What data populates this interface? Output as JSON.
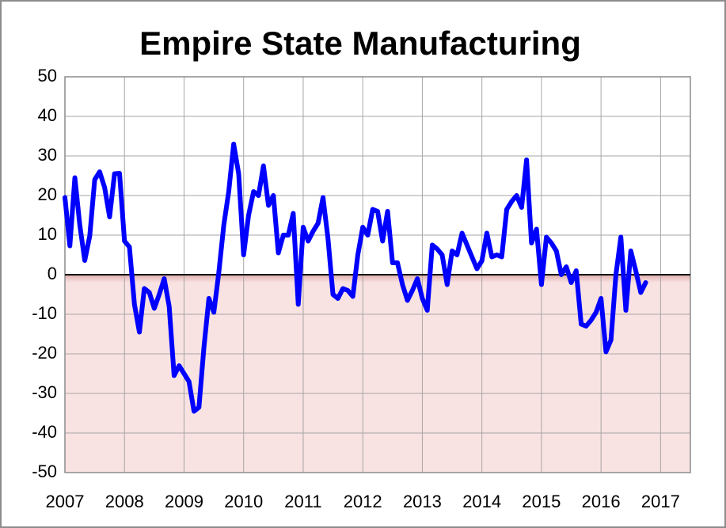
{
  "chart_data": {
    "type": "line",
    "title": "Empire State Manufacturing",
    "color": "#0000ff",
    "negative_fill": "#f9e2e2",
    "grid": true,
    "xlim": [
      2007,
      2017.5
    ],
    "xticks": [
      2007,
      2008,
      2009,
      2010,
      2011,
      2012,
      2013,
      2014,
      2015,
      2016,
      2017
    ],
    "ylim": [
      -50,
      50
    ],
    "yticks": [
      -50,
      -40,
      -30,
      -20,
      -10,
      0,
      10,
      20,
      30,
      40,
      50
    ],
    "x": [
      2007,
      2007.083,
      2007.167,
      2007.25,
      2007.333,
      2007.417,
      2007.5,
      2007.583,
      2007.667,
      2007.75,
      2007.833,
      2007.917,
      2008,
      2008.083,
      2008.167,
      2008.25,
      2008.333,
      2008.417,
      2008.5,
      2008.583,
      2008.667,
      2008.75,
      2008.833,
      2008.917,
      2009,
      2009.083,
      2009.167,
      2009.25,
      2009.333,
      2009.417,
      2009.5,
      2009.583,
      2009.667,
      2009.75,
      2009.833,
      2009.917,
      2010,
      2010.083,
      2010.167,
      2010.25,
      2010.333,
      2010.417,
      2010.5,
      2010.583,
      2010.667,
      2010.75,
      2010.833,
      2010.917,
      2011,
      2011.083,
      2011.167,
      2011.25,
      2011.333,
      2011.417,
      2011.5,
      2011.583,
      2011.667,
      2011.75,
      2011.833,
      2011.917,
      2012,
      2012.083,
      2012.167,
      2012.25,
      2012.333,
      2012.417,
      2012.5,
      2012.583,
      2012.667,
      2012.75,
      2012.833,
      2012.917,
      2013,
      2013.083,
      2013.167,
      2013.25,
      2013.333,
      2013.417,
      2013.5,
      2013.583,
      2013.667,
      2013.75,
      2013.833,
      2013.917,
      2014,
      2014.083,
      2014.167,
      2014.25,
      2014.333,
      2014.417,
      2014.5,
      2014.583,
      2014.667,
      2014.75,
      2014.833,
      2014.917,
      2015,
      2015.083,
      2015.167,
      2015.25,
      2015.333,
      2015.417,
      2015.5,
      2015.583,
      2015.667,
      2015.75,
      2015.833,
      2015.917,
      2016,
      2016.083,
      2016.167,
      2016.25,
      2016.333,
      2016.417,
      2016.5,
      2016.583,
      2016.667,
      2016.75
    ],
    "values": [
      19.5,
      7.3,
      24.5,
      12.5,
      3.6,
      9.8,
      24,
      26,
      22,
      14.6,
      25.5,
      25.6,
      8.5,
      7,
      -7.5,
      -14.5,
      -3.5,
      -4.5,
      -8.5,
      -5,
      -1,
      -8,
      -25.5,
      -23,
      -25,
      -27,
      -34.5,
      -33.5,
      -18.5,
      -6,
      -9.5,
      0.5,
      12.5,
      21,
      33,
      25.5,
      5,
      15,
      21,
      20,
      27.5,
      17.5,
      20,
      5.5,
      10,
      10,
      15.5,
      -7.5,
      12,
      8.5,
      11,
      13,
      19.5,
      9,
      -5,
      -6,
      -3.5,
      -4,
      -5.5,
      5,
      12,
      10,
      16.5,
      16,
      8.5,
      16,
      3,
      3,
      -2.5,
      -6.5,
      -4,
      -1,
      -6,
      -9,
      7.5,
      6.5,
      5,
      -2.5,
      6,
      5,
      10.5,
      7.5,
      4.5,
      1.5,
      3.5,
      10.5,
      4.5,
      5,
      4.5,
      16.5,
      18.5,
      20,
      17,
      29,
      8,
      11.5,
      -2.5,
      9.5,
      8,
      6,
      0,
      2,
      -2,
      1,
      -12.5,
      -13,
      -11.5,
      -9.5,
      -6,
      -19.5,
      -16.5,
      0,
      9.5,
      -9,
      6,
      1,
      -4.5,
      -2
    ]
  }
}
